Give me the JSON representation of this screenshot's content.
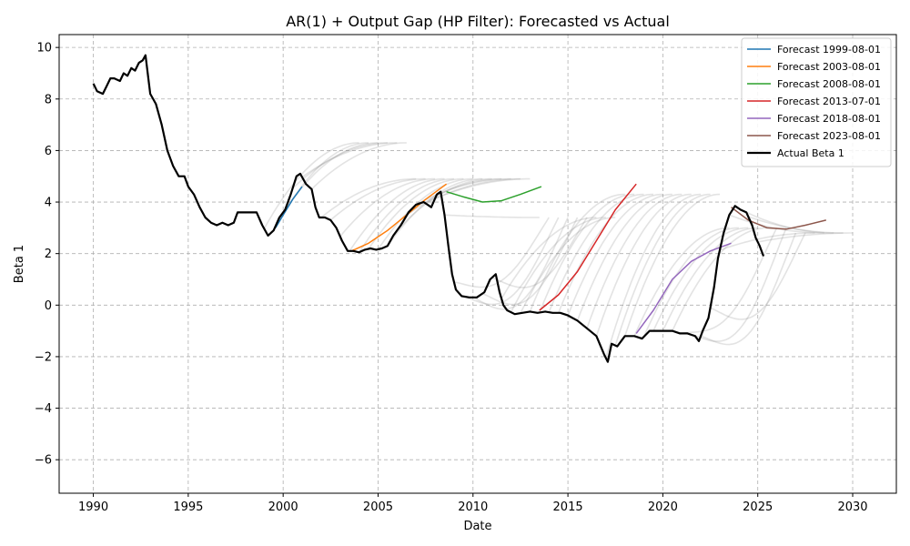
{
  "chart_data": {
    "type": "line",
    "title": "AR(1) + Output Gap (HP Filter): Forecasted vs Actual",
    "xlabel": "Date",
    "ylabel": "Beta 1",
    "xlim": [
      1988.2,
      2032.3
    ],
    "ylim": [
      -7.3,
      10.5
    ],
    "x_ticks": [
      1990,
      1995,
      2000,
      2005,
      2010,
      2015,
      2020,
      2025,
      2030
    ],
    "y_ticks": [
      -6,
      -4,
      -2,
      0,
      2,
      4,
      6,
      8,
      10
    ],
    "x_tick_labels": [
      "1990",
      "1995",
      "2000",
      "2005",
      "2010",
      "2015",
      "2020",
      "2025",
      "2030"
    ],
    "y_tick_labels": [
      "−6",
      "−4",
      "−2",
      "0",
      "2",
      "4",
      "6",
      "8",
      "10"
    ],
    "grid": true,
    "legend_position": "top-right",
    "colors": {
      "forecast_1999": "#1f77b4",
      "forecast_2003": "#ff7f0e",
      "forecast_2008": "#2ca02c",
      "forecast_2013": "#d62728",
      "forecast_2018": "#9467bd",
      "forecast_2023": "#8c564b",
      "actual": "#000000",
      "background_forecasts": "#808080"
    },
    "series": [
      {
        "name": "Forecast 1999-08-01",
        "color": "#1f77b4",
        "x": [
          1999.6,
          2000.0,
          2000.5,
          2001.0
        ],
        "y": [
          3.0,
          3.5,
          4.1,
          4.6
        ]
      },
      {
        "name": "Forecast 2003-08-01",
        "color": "#ff7f0e",
        "x": [
          2003.6,
          2004.5,
          2005.5,
          2006.5,
          2007.5,
          2008.6
        ],
        "y": [
          2.1,
          2.4,
          2.9,
          3.5,
          4.1,
          4.7
        ]
      },
      {
        "name": "Forecast 2008-08-01",
        "color": "#2ca02c",
        "x": [
          2008.6,
          2009.5,
          2010.5,
          2011.5,
          2012.5,
          2013.6
        ],
        "y": [
          4.4,
          4.2,
          4.0,
          4.05,
          4.3,
          4.6
        ]
      },
      {
        "name": "Forecast 2013-07-01",
        "color": "#d62728",
        "x": [
          2013.5,
          2014.5,
          2015.5,
          2016.5,
          2017.5,
          2018.6
        ],
        "y": [
          -0.2,
          0.4,
          1.3,
          2.5,
          3.7,
          4.7
        ]
      },
      {
        "name": "Forecast 2018-08-01",
        "color": "#9467bd",
        "x": [
          2018.6,
          2019.5,
          2020.5,
          2021.5,
          2022.5,
          2023.6
        ],
        "y": [
          -1.1,
          -0.2,
          1.0,
          1.7,
          2.1,
          2.4
        ]
      },
      {
        "name": "Forecast 2023-08-01",
        "color": "#8c564b",
        "x": [
          2023.6,
          2024.5,
          2025.5,
          2026.5,
          2027.5,
          2028.6
        ],
        "y": [
          3.8,
          3.3,
          3.0,
          2.95,
          3.1,
          3.3
        ]
      },
      {
        "name": "Actual Beta 1",
        "color": "#000000",
        "x": [
          1990.0,
          1990.2,
          1990.5,
          1990.7,
          1990.9,
          1991.1,
          1991.4,
          1991.6,
          1991.8,
          1992.0,
          1992.2,
          1992.4,
          1992.6,
          1992.75,
          1993.0,
          1993.3,
          1993.6,
          1993.9,
          1994.2,
          1994.5,
          1994.8,
          1995.0,
          1995.3,
          1995.6,
          1995.9,
          1996.2,
          1996.5,
          1996.8,
          1997.1,
          1997.4,
          1997.6,
          1997.9,
          1998.2,
          1998.6,
          1998.9,
          1999.2,
          1999.5,
          1999.8,
          2000.1,
          2000.4,
          2000.7,
          2000.9,
          2001.2,
          2001.5,
          2001.7,
          2001.9,
          2002.2,
          2002.5,
          2002.8,
          2003.1,
          2003.4,
          2003.7,
          2004.0,
          2004.3,
          2004.6,
          2004.9,
          2005.2,
          2005.5,
          2005.8,
          2006.2,
          2006.6,
          2007.0,
          2007.4,
          2007.8,
          2008.1,
          2008.3,
          2008.5,
          2008.7,
          2008.9,
          2009.1,
          2009.4,
          2009.8,
          2010.2,
          2010.6,
          2010.9,
          2011.2,
          2011.4,
          2011.6,
          2011.8,
          2012.2,
          2012.6,
          2013.0,
          2013.4,
          2013.8,
          2014.2,
          2014.6,
          2015.0,
          2015.5,
          2016.0,
          2016.5,
          2016.9,
          2017.1,
          2017.3,
          2017.6,
          2018.0,
          2018.5,
          2018.9,
          2019.3,
          2019.7,
          2020.1,
          2020.5,
          2020.9,
          2021.3,
          2021.7,
          2021.9,
          2022.1,
          2022.4,
          2022.7,
          2022.9,
          2023.2,
          2023.5,
          2023.8,
          2024.1,
          2024.4,
          2024.7,
          2024.9,
          2025.1,
          2025.3
        ],
        "y": [
          8.6,
          8.3,
          8.2,
          8.5,
          8.8,
          8.8,
          8.7,
          9.0,
          8.9,
          9.2,
          9.1,
          9.4,
          9.5,
          9.7,
          8.2,
          7.8,
          7.0,
          6.0,
          5.4,
          5.0,
          5.0,
          4.6,
          4.3,
          3.8,
          3.4,
          3.2,
          3.1,
          3.2,
          3.1,
          3.2,
          3.6,
          3.6,
          3.6,
          3.6,
          3.1,
          2.7,
          2.9,
          3.4,
          3.7,
          4.3,
          5.0,
          5.1,
          4.7,
          4.5,
          3.8,
          3.4,
          3.4,
          3.3,
          3.0,
          2.5,
          2.1,
          2.1,
          2.05,
          2.15,
          2.2,
          2.15,
          2.2,
          2.3,
          2.7,
          3.1,
          3.6,
          3.9,
          4.0,
          3.8,
          4.3,
          4.4,
          3.5,
          2.3,
          1.2,
          0.6,
          0.35,
          0.3,
          0.3,
          0.5,
          1.0,
          1.2,
          0.5,
          0.0,
          -0.2,
          -0.35,
          -0.3,
          -0.25,
          -0.3,
          -0.25,
          -0.3,
          -0.3,
          -0.4,
          -0.6,
          -0.9,
          -1.2,
          -1.9,
          -2.2,
          -1.5,
          -1.6,
          -1.2,
          -1.2,
          -1.3,
          -1.0,
          -1.0,
          -1.0,
          -1.0,
          -1.1,
          -1.1,
          -1.2,
          -1.4,
          -1.0,
          -0.5,
          0.7,
          1.8,
          2.8,
          3.5,
          3.85,
          3.7,
          3.6,
          3.1,
          2.6,
          2.3,
          1.9
        ]
      }
    ],
    "background_forecast_note": ""
  }
}
